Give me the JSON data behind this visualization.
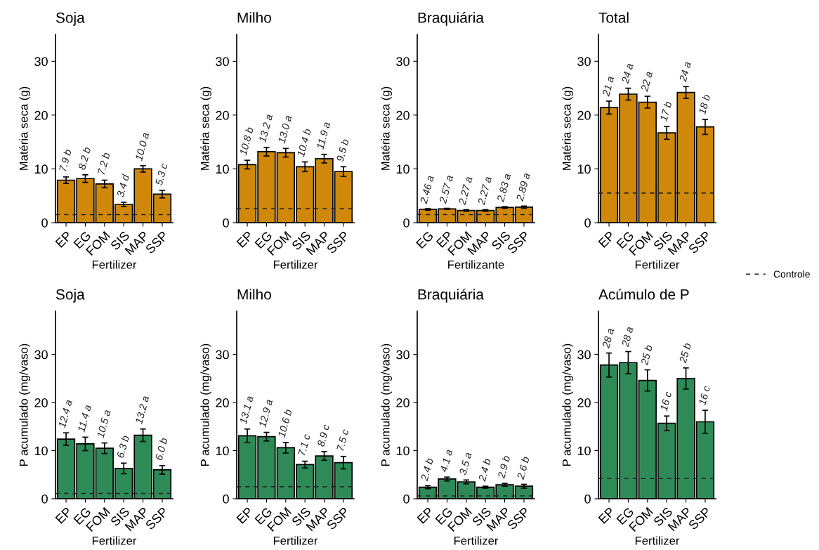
{
  "chart_data": [
    {
      "type": "bar",
      "title": "Soja",
      "xlabel": "Fertilizer",
      "ylabel": "Matéria seca (g)",
      "categories": [
        "EP",
        "EG",
        "FOM",
        "SIS",
        "MAP",
        "SSP"
      ],
      "color": "#d0880b",
      "values": [
        7.9,
        8.2,
        7.2,
        3.4,
        10.0,
        5.3
      ],
      "errors": [
        0.6,
        0.7,
        0.7,
        0.4,
        0.6,
        0.7
      ],
      "value_labels": [
        "7.9 b",
        "8.2 b",
        "7.2 b",
        "3.4 d",
        "10.0 a",
        "5.3 c"
      ],
      "ylim": [
        0,
        35
      ],
      "yticks": [
        0,
        10,
        20,
        30
      ],
      "grid": false,
      "ref_lines": [
        {
          "axis": "y",
          "value": 1.5,
          "line_style": "dashed"
        }
      ]
    },
    {
      "type": "bar",
      "title": "Milho",
      "xlabel": "Fertilizer",
      "ylabel": "Matéria seca (g)",
      "categories": [
        "EP",
        "EG",
        "FOM",
        "SIS",
        "MAP",
        "SSP"
      ],
      "color": "#d0880b",
      "values": [
        10.8,
        13.2,
        13.0,
        10.4,
        11.9,
        9.5
      ],
      "errors": [
        0.8,
        0.8,
        0.8,
        0.9,
        0.8,
        0.9
      ],
      "value_labels": [
        "10.8 b",
        "13.2 a",
        "13.0 a",
        "10.4 b",
        "11.9 a",
        "9.5 b"
      ],
      "ylim": [
        0,
        35
      ],
      "yticks": [
        0,
        10,
        20,
        30
      ],
      "grid": false,
      "ref_lines": [
        {
          "axis": "y",
          "value": 2.6,
          "line_style": "dashed"
        }
      ]
    },
    {
      "type": "bar",
      "title": "Braquiária",
      "xlabel": "Fertilizante",
      "ylabel": "Matéria seca (g)",
      "categories": [
        "EG",
        "EP",
        "FOM",
        "MAP",
        "SIS",
        "SSP"
      ],
      "color": "#d0880b",
      "values": [
        2.46,
        2.57,
        2.27,
        2.27,
        2.83,
        2.89
      ],
      "errors": [
        0.15,
        0.1,
        0.15,
        0.15,
        0.15,
        0.2
      ],
      "value_labels": [
        "2.46 a",
        "2.57 a",
        "2.27 a",
        "2.27 a",
        "2.83 a",
        "2.89 a"
      ],
      "ylim": [
        0,
        35
      ],
      "yticks": [
        0,
        10,
        20,
        30
      ],
      "grid": false,
      "ref_lines": [
        {
          "axis": "y",
          "value": 1.5,
          "line_style": "dashed"
        }
      ]
    },
    {
      "type": "bar",
      "title": "Total",
      "xlabel": "Fertilizer",
      "ylabel": "Matéria seca (g)",
      "categories": [
        "EP",
        "EG",
        "FOM",
        "SIS",
        "MAP",
        "SSP"
      ],
      "color": "#d0880b",
      "values": [
        21.4,
        23.9,
        22.4,
        16.7,
        24.2,
        17.8
      ],
      "errors": [
        1.2,
        1.1,
        1.1,
        1.2,
        1.1,
        1.4
      ],
      "value_labels": [
        "21 a",
        "24 a",
        "22 a",
        "17 b",
        "24 a",
        "18 b"
      ],
      "ylim": [
        0,
        35
      ],
      "yticks": [
        0,
        10,
        20,
        30
      ],
      "grid": false,
      "legend": "right",
      "ref_lines": [
        {
          "axis": "y",
          "value": 5.5,
          "label": "Controle",
          "line_style": "dashed"
        }
      ]
    },
    {
      "type": "bar",
      "title": "Soja",
      "xlabel": "Fertilizer",
      "ylabel": "P acumulado (mg/vaso)",
      "categories": [
        "EP",
        "EG",
        "FOM",
        "SIS",
        "MAP",
        "SSP"
      ],
      "color": "#2e8b57",
      "values": [
        12.4,
        11.4,
        10.5,
        6.3,
        13.2,
        6.0
      ],
      "errors": [
        1.3,
        1.4,
        1.1,
        1.1,
        1.3,
        0.9
      ],
      "value_labels": [
        "12.4 a",
        "11.4 a",
        "10.5 a",
        "6.3 b",
        "13.2 a",
        "6.0 b"
      ],
      "ylim": [
        0,
        39
      ],
      "yticks": [
        0,
        10,
        20,
        30
      ],
      "grid": false,
      "ref_lines": [
        {
          "axis": "y",
          "value": 1.1,
          "line_style": "dashed"
        }
      ]
    },
    {
      "type": "bar",
      "title": "Milho",
      "xlabel": "Fertilizer",
      "ylabel": "P acumulado (mg/vaso)",
      "categories": [
        "EP",
        "EG",
        "FOM",
        "SIS",
        "MAP",
        "SSP"
      ],
      "color": "#2e8b57",
      "values": [
        13.1,
        12.9,
        10.6,
        7.1,
        8.9,
        7.5
      ],
      "errors": [
        1.4,
        0.9,
        1.1,
        0.7,
        0.9,
        1.3
      ],
      "value_labels": [
        "13.1 a",
        "12.9 a",
        "10.6 b",
        "7.1 c",
        "8.9 c",
        "7.5 c"
      ],
      "ylim": [
        0,
        39
      ],
      "yticks": [
        0,
        10,
        20,
        30
      ],
      "grid": false,
      "ref_lines": [
        {
          "axis": "y",
          "value": 2.5,
          "line_style": "dashed"
        }
      ]
    },
    {
      "type": "bar",
      "title": "Braquiária",
      "xlabel": "Fertilizer",
      "ylabel": "P acumulado (mg/vaso)",
      "categories": [
        "EP",
        "EG",
        "FOM",
        "SIS",
        "MAP",
        "SSP"
      ],
      "color": "#2e8b57",
      "values": [
        2.4,
        4.1,
        3.5,
        2.4,
        2.9,
        2.6
      ],
      "errors": [
        0.3,
        0.4,
        0.4,
        0.2,
        0.3,
        0.4
      ],
      "value_labels": [
        "2.4 b",
        "4.1 a",
        "3.5 a",
        "2.4 b",
        "2.9 b",
        "2.6 b"
      ],
      "ylim": [
        0,
        39
      ],
      "yticks": [
        0,
        10,
        20,
        30
      ],
      "grid": false,
      "ref_lines": [
        {
          "axis": "y",
          "value": 0.6,
          "line_style": "dashed"
        }
      ]
    },
    {
      "type": "bar",
      "title": "Acúmulo de P",
      "xlabel": "Fertilizer",
      "ylabel": "P acumulado (mg/vaso)",
      "categories": [
        "EP",
        "EG",
        "FOM",
        "SIS",
        "MAP",
        "SSP"
      ],
      "color": "#2e8b57",
      "values": [
        27.8,
        28.3,
        24.6,
        15.7,
        25.0,
        16.0
      ],
      "errors": [
        2.5,
        2.3,
        2.2,
        1.5,
        2.2,
        2.4
      ],
      "value_labels": [
        "28 a",
        "28 a",
        "25 b",
        "16 c",
        "25 b",
        "16 c"
      ],
      "ylim": [
        0,
        39
      ],
      "yticks": [
        0,
        10,
        20,
        30
      ],
      "grid": false,
      "ref_lines": [
        {
          "axis": "y",
          "value": 4.2,
          "line_style": "dashed"
        }
      ]
    }
  ]
}
